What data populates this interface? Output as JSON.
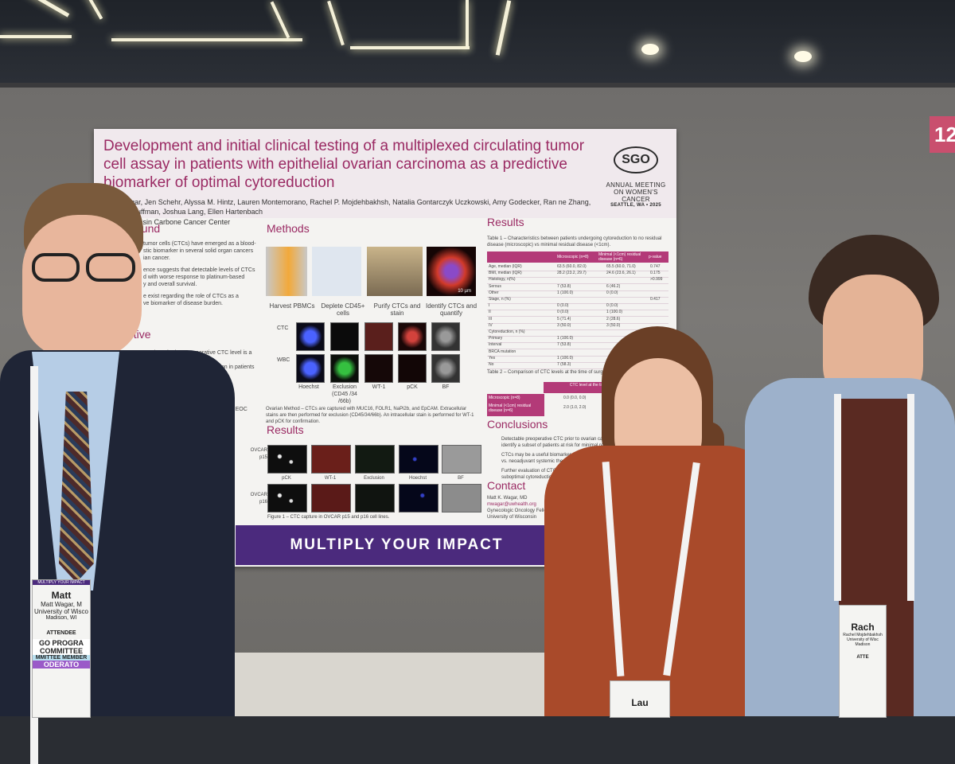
{
  "booth_number": "12",
  "poster": {
    "title": "Development and initial clinical testing of a multiplexed circulating tumor cell assay in patients with epithelial ovarian carcinoma as a predictive biomarker of optimal cytoreduction",
    "authors": "K. Wagar, Jen Schehr, Alyssa M. Hintz, Lauren Montemorano, Rachel P. Mojdehbakhsh, Natalia Gontarczyk Uczkowski, Amy Godecker, Ran ne Zhang, Laura Huffman, Joshua Lang, Ellen Hartenbach",
    "affiliation": "of Wisconsin Carbone Cancer Center",
    "logo": {
      "mark": "SGO",
      "line1": "ANNUAL MEETING",
      "line2": "ON WOMEN'S CANCER",
      "line3": "SEATTLE, WA • 2025"
    },
    "sections": {
      "background": "ound",
      "objective": "ective",
      "methods": "Methods",
      "results_left": "Results",
      "results_right": "Results",
      "conclusions": "Conclusions",
      "contact": "Contact"
    },
    "background_text": [
      "tumor cells (CTCs) have emerged as a blood-",
      "stic biomarker in several solid organ cancers",
      "ian cancer.",
      "ence suggests that detectable levels of CTCs",
      "d with worse response to platinum-based",
      "y and overall survival.",
      "e exist regarding the role of CTCs as a",
      "ve biomarker of disease burden."
    ],
    "objective_text": [
      "mine whether preoperative CTC level is a useful",
      "marker of optimal cytoreduction in patients",
      "cancer."
    ],
    "side_fragments": [
      "sed with EOC",
      "igen"
    ],
    "methods_steps": [
      "Harvest PBMCs",
      "Deplete CD45+ cells",
      "Purify CTCs and stain",
      "Identify CTCs and quantify"
    ],
    "scale_bar": "10 µm",
    "row_labels": [
      "CTC",
      "WBC"
    ],
    "stain_labels": [
      "Hoechst",
      "Exclusion (CD45 /34 /66b)",
      "WT-1",
      "pCK",
      "BF"
    ],
    "methods_note": "Ovarian Method – CTCs are captured with MUC16, FOLR1, NaPi2b, and EpCAM. Extracellular stains are then performed for exclusion (CD45/34/66b). An intracellular stain is performed for WT-1 and pCK for confirmation.",
    "results_rows": [
      "OVCAR p15",
      "OVCAR p16"
    ],
    "results_stains": [
      "pCK",
      "WT-1",
      "Exclusion",
      "Hoechst",
      "BF"
    ],
    "figure_caption": "Figure 1 – CTC capture in OVCAR p15 and p16 cell lines.",
    "table1": {
      "caption": "Table 1 – Characteristics between patients undergoing cytoreduction to no residual disease (microscopic) vs minimal residual disease (<1cm).",
      "headers": [
        "",
        "Microscopic (n=8)",
        "Minimal (<1cm) residual disease (n=6)",
        "p-value"
      ],
      "rows": [
        [
          "Age, median (IQR)",
          "63.5 (60.0, 82.0)",
          "65.5 (60.0, 71.0)",
          "0.747"
        ],
        [
          "BMI, median (IQR)",
          "28.2 (23.2, 29.7)",
          "24.6 (23.6, 26.1)",
          "0.175"
        ],
        [
          "Histology, n(%)",
          "",
          "",
          ">0.999"
        ],
        [
          "Serous",
          "7 (53.8)",
          "6 (46.2)",
          ""
        ],
        [
          "Other",
          "1 (100.0)",
          "0 (0.0)",
          ""
        ],
        [
          "Stage, n (%)",
          "",
          "",
          "0.417"
        ],
        [
          "I",
          "0 (0.0)",
          "0 (0.0)",
          ""
        ],
        [
          "II",
          "0 (0.0)",
          "1 (100.0)",
          ""
        ],
        [
          "III",
          "5 (71.4)",
          "2 (28.6)",
          ""
        ],
        [
          "IV",
          "3 (50.0)",
          "3 (50.0)",
          ""
        ],
        [
          "Cytoreduction, n (%)",
          "",
          "",
          ""
        ],
        [
          "Primary",
          "1 (100.0)",
          "",
          ""
        ],
        [
          "Interval",
          "7 (53.8)",
          "",
          ""
        ],
        [
          "BRCA mutation",
          "",
          "",
          ""
        ],
        [
          "Yes",
          "1 (100.0)",
          "",
          ""
        ],
        [
          "No",
          "7 (58.3)",
          "",
          ""
        ]
      ]
    },
    "table2": {
      "caption": "Table 2 – Comparison of CTC levels at the time of surg outcome.",
      "header": "CTC level at the time of surge median(IQR)",
      "rows": [
        [
          "Microscopic (n=8)",
          "0.0 (0.0, 0.0)"
        ],
        [
          "Minimal (<1cm) residual disease (n=6)",
          "2.0 (1.0, 2.0)"
        ]
      ]
    },
    "conclusions_text": [
      "Detectable preoperative CTC prior to ovarian cancer cyt",
      "identify a subset of patients at risk for minimal residual",
      "CTCs may be a useful biomarker to select patients f",
      "vs. neoadjuvant systemic therapy.",
      "Further evaluation of CTCs is warran",
      "suboptimal cytoreduction as this"
    ],
    "contact_lines": [
      "Matt K. Wagar, MD",
      "mwagar@uwhealth.org",
      "Gynecologic Oncology Fellow",
      "University of Wisconsin"
    ],
    "banner": "MULTIPLY YOUR IMPACT"
  },
  "badges": {
    "left": {
      "top": "MULTIPLY YOUR IMPACT",
      "name": "Matt",
      "full": "Matt Wagar, M",
      "org": "University of Wisco",
      "city": "Madison, WI",
      "role": "ATTENDEE",
      "ribbon1": "GO PROGRA",
      "ribbon2": "COMMITTEE",
      "ribbon3": "MMITTEE MEMBER",
      "ribbon4": "ODERATO"
    },
    "middle": {
      "name": "Lau"
    },
    "right": {
      "name": "Rach",
      "full": "Rachel Mojdehbakhsh",
      "org": "University of Wisc",
      "city": "Madison",
      "role": "ATTE"
    }
  },
  "colors": {
    "accent": "#9a2a63",
    "banner": "#4b2a7d",
    "table_header": "#b33a78",
    "booth_tag": "#c94f6e"
  }
}
